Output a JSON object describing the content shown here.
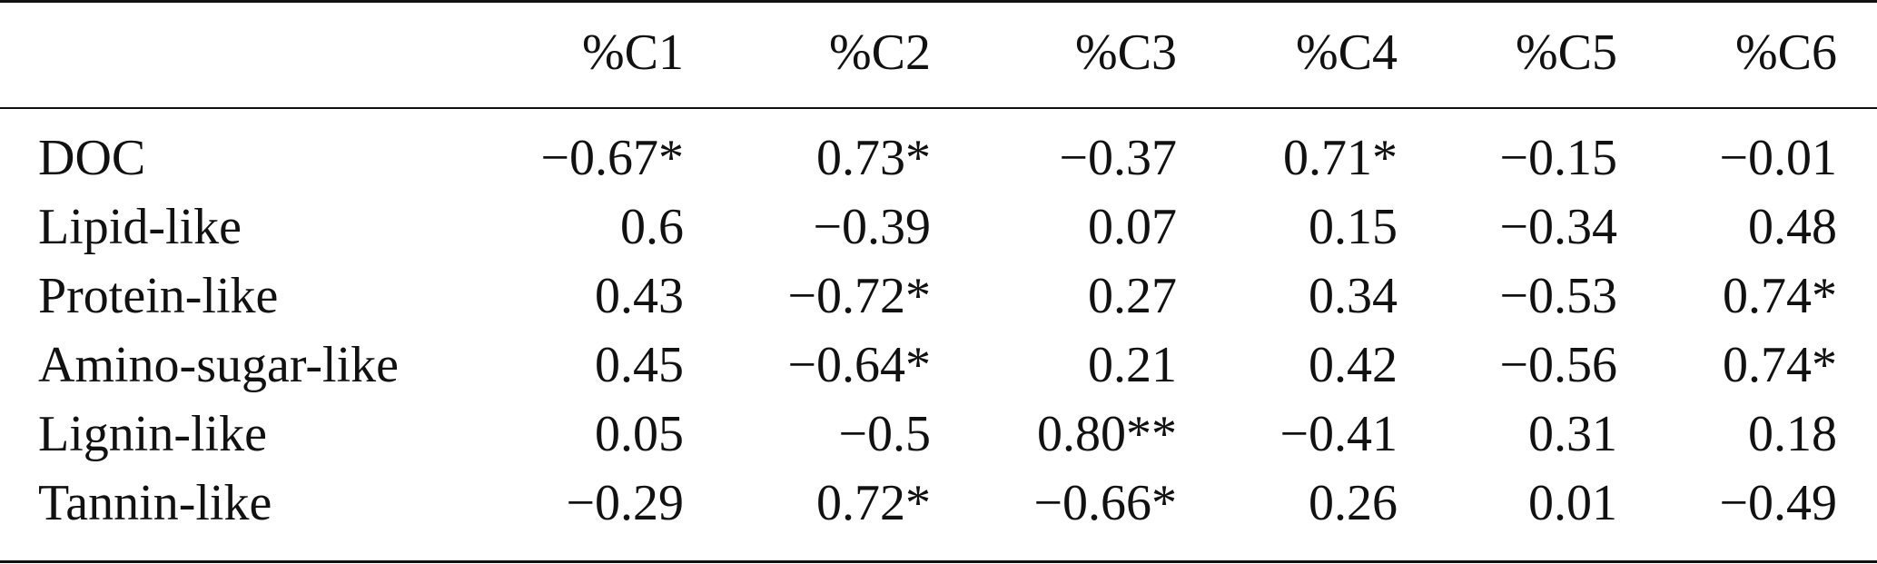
{
  "table": {
    "columns": [
      "",
      "%C1",
      "%C2",
      "%C3",
      "%C4",
      "%C5",
      "%C6"
    ],
    "rows": [
      {
        "label": "DOC",
        "values": [
          "−0.67*",
          "0.73*",
          "−0.37",
          "0.71*",
          "−0.15",
          "−0.01"
        ]
      },
      {
        "label": "Lipid-like",
        "values": [
          "0.6",
          "−0.39",
          "0.07",
          "0.15",
          "−0.34",
          "0.48"
        ]
      },
      {
        "label": "Protein-like",
        "values": [
          "0.43",
          "−0.72*",
          "0.27",
          "0.34",
          "−0.53",
          "0.74*"
        ]
      },
      {
        "label": "Amino-sugar-like",
        "values": [
          "0.45",
          "−0.64*",
          "0.21",
          "0.42",
          "−0.56",
          "0.74*"
        ]
      },
      {
        "label": "Lignin-like",
        "values": [
          "0.05",
          "−0.5",
          "0.80**",
          "−0.41",
          "0.31",
          "0.18"
        ]
      },
      {
        "label": "Tannin-like",
        "values": [
          "−0.29",
          "0.72*",
          "−0.66*",
          "0.26",
          "0.01",
          "−0.49"
        ]
      }
    ]
  }
}
